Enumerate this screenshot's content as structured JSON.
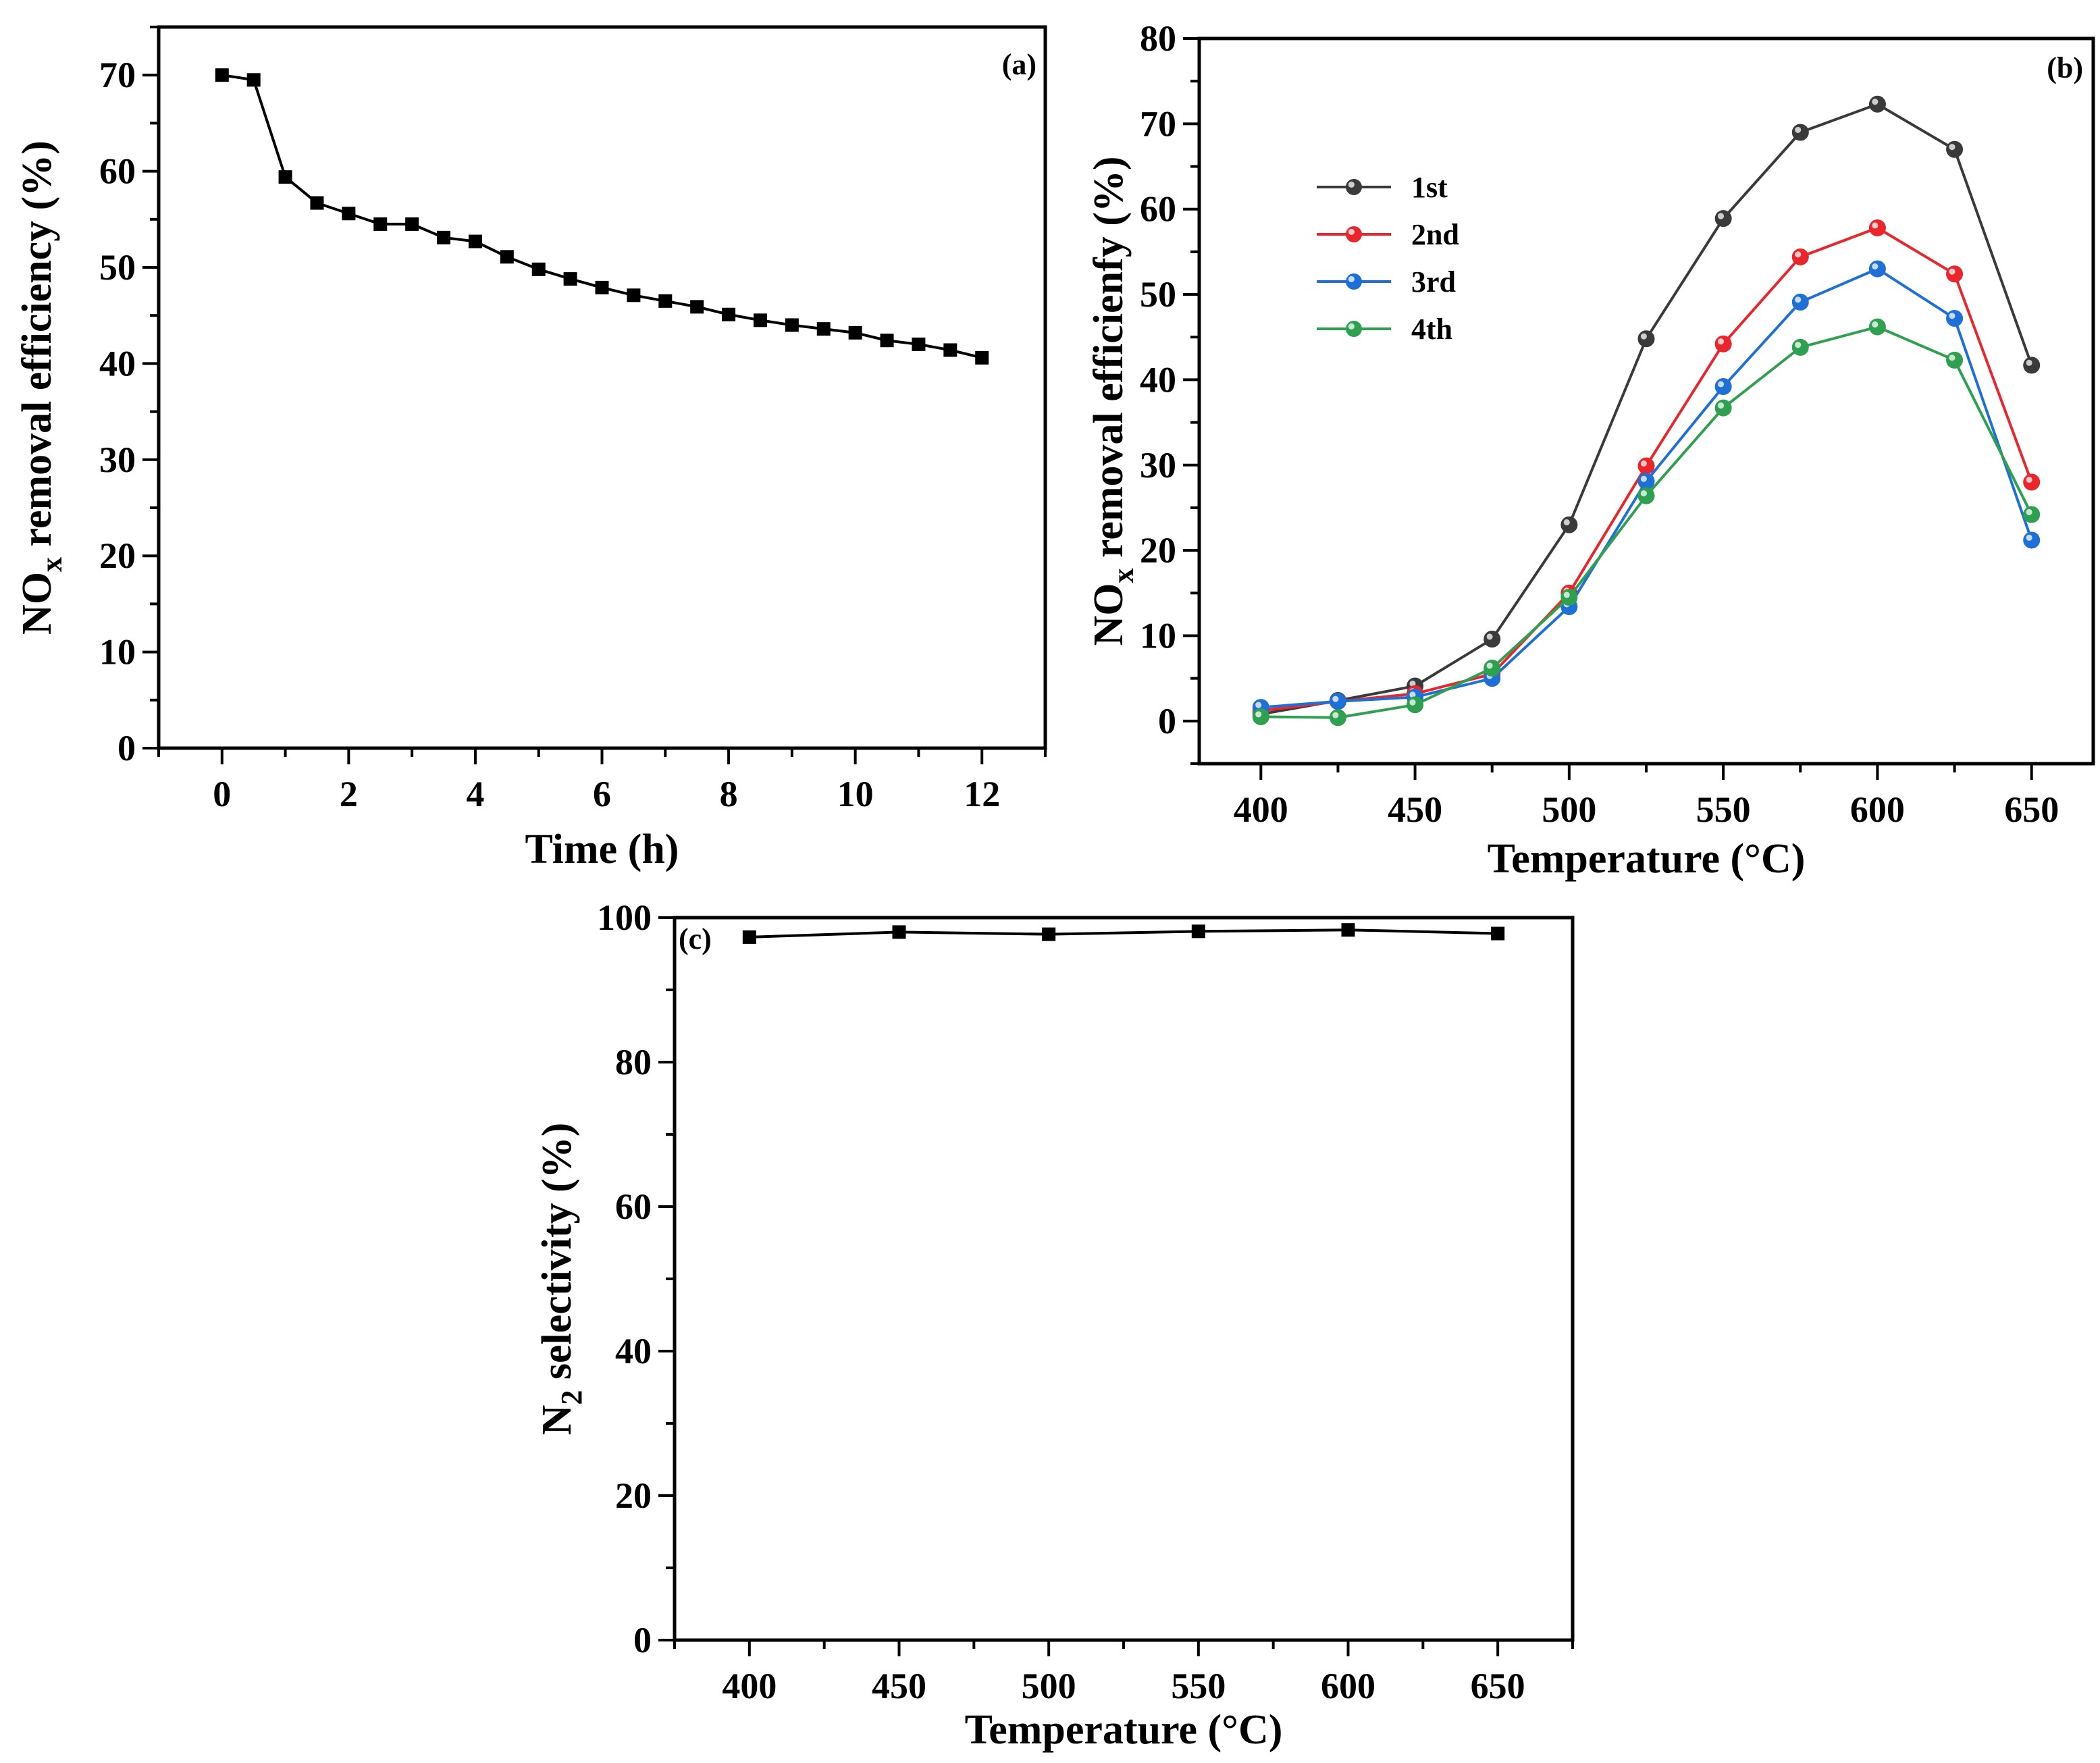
{
  "chart_data": [
    {
      "type": "line",
      "panel_label": "(a)",
      "xlabel": "Time (h)",
      "ylabel_main": "NO",
      "ylabel_sub": "x",
      "ylabel_rest": " removal efficiency (%)",
      "xlim": [
        -1,
        13
      ],
      "ylim": [
        0,
        75
      ],
      "xticks": [
        "0",
        "2",
        "4",
        "6",
        "8",
        "10",
        "12"
      ],
      "xtick_values": [
        0,
        2,
        4,
        6,
        8,
        10,
        12
      ],
      "yticks": [
        "0",
        "10",
        "20",
        "30",
        "40",
        "50",
        "60",
        "70"
      ],
      "ytick_values": [
        0,
        10,
        20,
        30,
        40,
        50,
        60,
        70
      ],
      "marker": "square",
      "color": "#000000",
      "series": [
        {
          "name": "",
          "x": [
            0,
            0.5,
            1,
            1.5,
            2,
            2.5,
            3,
            3.5,
            4,
            4.5,
            5,
            5.5,
            6,
            6.5,
            7,
            7.5,
            8,
            8.5,
            9,
            9.5,
            10,
            10.5,
            11,
            11.5,
            12
          ],
          "values": [
            70.0,
            69.5,
            59.4,
            56.7,
            55.6,
            54.5,
            54.5,
            53.1,
            52.7,
            51.1,
            49.8,
            48.8,
            47.9,
            47.1,
            46.5,
            45.9,
            45.1,
            44.5,
            44.0,
            43.6,
            43.2,
            42.4,
            42.0,
            41.4,
            40.6
          ]
        }
      ]
    },
    {
      "type": "line",
      "panel_label": "(b)",
      "xlabel": "Temperature (°C)",
      "ylabel_main": "NO",
      "ylabel_sub": "x",
      "ylabel_rest": " removal efficienfy (%)",
      "xlim": [
        380,
        670
      ],
      "ylim": [
        -5,
        80
      ],
      "xticks": [
        "400",
        "450",
        "500",
        "550",
        "600",
        "650"
      ],
      "xtick_values": [
        400,
        450,
        500,
        550,
        600,
        650
      ],
      "yticks": [
        "0",
        "10",
        "20",
        "30",
        "40",
        "50",
        "60",
        "70",
        "80"
      ],
      "ytick_values": [
        0,
        10,
        20,
        30,
        40,
        50,
        60,
        70,
        80
      ],
      "legend_position": "upper-left",
      "marker": "circle",
      "x": [
        400,
        425,
        450,
        475,
        500,
        525,
        550,
        575,
        600,
        625,
        650
      ],
      "series": [
        {
          "name": "1st",
          "color": "#3a3a3a",
          "values": [
            0.8,
            2.4,
            4.1,
            9.6,
            23.0,
            44.8,
            58.9,
            69.0,
            72.3,
            67.0,
            41.7
          ]
        },
        {
          "name": "2nd",
          "color": "#e8262b",
          "values": [
            1.2,
            2.3,
            3.2,
            5.5,
            15.0,
            29.9,
            44.2,
            54.4,
            57.8,
            52.4,
            28.0
          ]
        },
        {
          "name": "3rd",
          "color": "#1e6fd6",
          "values": [
            1.6,
            2.3,
            2.8,
            5.0,
            13.4,
            28.1,
            39.2,
            49.1,
            53.0,
            47.2,
            21.2
          ]
        },
        {
          "name": "4th",
          "color": "#2fa04f",
          "values": [
            0.5,
            0.4,
            1.9,
            6.2,
            14.5,
            26.4,
            36.7,
            43.8,
            46.2,
            42.3,
            24.2
          ]
        }
      ]
    },
    {
      "type": "line",
      "panel_label": "(c)",
      "xlabel": "Temperature (°C)",
      "ylabel_main": "N",
      "ylabel_sub": "2",
      "ylabel_rest": " selectivity (%)",
      "xlim": [
        375,
        675
      ],
      "ylim": [
        0,
        100
      ],
      "xticks": [
        "400",
        "450",
        "500",
        "550",
        "600",
        "650"
      ],
      "xtick_values": [
        400,
        450,
        500,
        550,
        600,
        650
      ],
      "yticks": [
        "0",
        "20",
        "40",
        "60",
        "80",
        "100"
      ],
      "ytick_values": [
        0,
        20,
        40,
        60,
        80,
        100
      ],
      "marker": "square",
      "color": "#000000",
      "series": [
        {
          "name": "",
          "x": [
            400,
            450,
            500,
            550,
            600,
            650
          ],
          "values": [
            97.3,
            98.0,
            97.7,
            98.1,
            98.3,
            97.8
          ]
        }
      ]
    }
  ]
}
